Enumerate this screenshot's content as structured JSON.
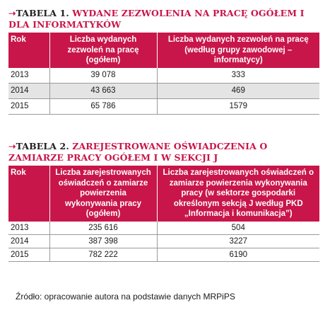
{
  "tables": [
    {
      "title_prefix": "TABELA 1.",
      "title_rest": "WYDANE ZEZWOLENIA NA PRACĘ OGÓŁEM I DLA INFORMATYKÓW",
      "headers": [
        "Rok",
        "Liczba wydanych zezwoleń na pracę (ogółem)",
        "Liczba wydanych zezwoleń na pracę (według grupy zawodowej – informatycy)"
      ],
      "rows": [
        [
          "2013",
          "39 078",
          "333"
        ],
        [
          "2014",
          "43 663",
          "469"
        ],
        [
          "2015",
          "65 786",
          "1579"
        ]
      ]
    },
    {
      "title_prefix": "TABELA 2.",
      "title_rest": "ZAREJESTROWANE OŚWIADCZENIA O ZAMIARZE PRACY OGÓŁEM I W SEKCJI J",
      "headers": [
        "Rok",
        "Liczba zarejestrowanych oświadczeń o zamiarze powierzenia wykonywania pracy (ogółem)",
        "Liczba zarejestrowanych oświadczeń o zamiarze powierzenia wykonywania pracy (w sektorze gospodarki określonym sekcją J według PKD „Informacja i komunikacja”)"
      ],
      "rows": [
        [
          "2013",
          "235 616",
          "504"
        ],
        [
          "2014",
          "387 398",
          "3227"
        ],
        [
          "2015",
          "782 222",
          "6190"
        ]
      ]
    }
  ],
  "source": "Źródło: opracowanie autora na podstawie danych MRPiPS",
  "colors": {
    "accent": "#c8164a",
    "alt_row": "#e4e4e4"
  }
}
